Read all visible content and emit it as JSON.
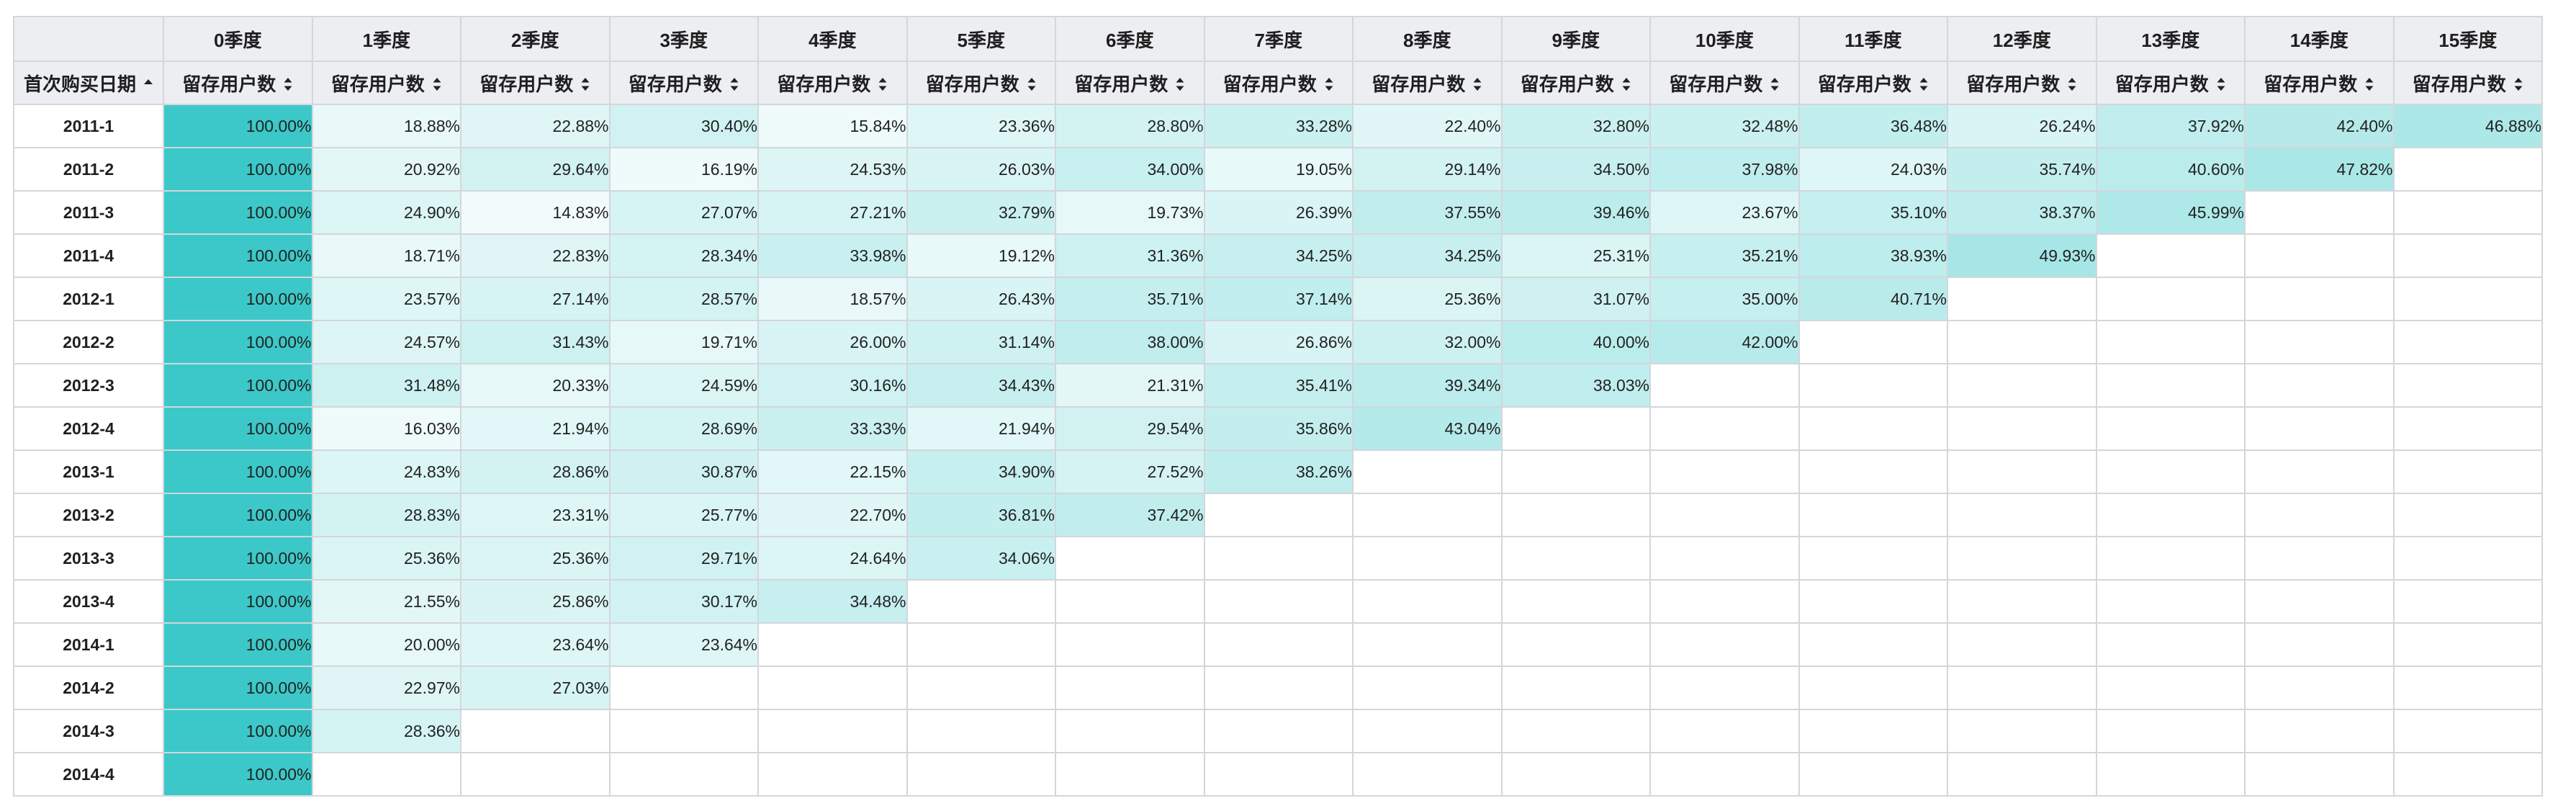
{
  "table": {
    "corner_label": "",
    "row_header_label": "首次购买日期",
    "subheader_label": "留存用户数",
    "quarters": [
      "0季度",
      "1季度",
      "2季度",
      "3季度",
      "4季度",
      "5季度",
      "6季度",
      "7季度",
      "8季度",
      "9季度",
      "10季度",
      "11季度",
      "12季度",
      "13季度",
      "14季度",
      "15季度"
    ],
    "rows": [
      {
        "label": "2011-1",
        "values": [
          "100.00%",
          "18.88%",
          "22.88%",
          "30.40%",
          "15.84%",
          "23.36%",
          "28.80%",
          "33.28%",
          "22.40%",
          "32.80%",
          "32.48%",
          "36.48%",
          "26.24%",
          "37.92%",
          "42.40%",
          "46.88%"
        ]
      },
      {
        "label": "2011-2",
        "values": [
          "100.00%",
          "20.92%",
          "29.64%",
          "16.19%",
          "24.53%",
          "26.03%",
          "34.00%",
          "19.05%",
          "29.14%",
          "34.50%",
          "37.98%",
          "24.03%",
          "35.74%",
          "40.60%",
          "47.82%"
        ]
      },
      {
        "label": "2011-3",
        "values": [
          "100.00%",
          "24.90%",
          "14.83%",
          "27.07%",
          "27.21%",
          "32.79%",
          "19.73%",
          "26.39%",
          "37.55%",
          "39.46%",
          "23.67%",
          "35.10%",
          "38.37%",
          "45.99%"
        ]
      },
      {
        "label": "2011-4",
        "values": [
          "100.00%",
          "18.71%",
          "22.83%",
          "28.34%",
          "33.98%",
          "19.12%",
          "31.36%",
          "34.25%",
          "34.25%",
          "25.31%",
          "35.21%",
          "38.93%",
          "49.93%"
        ]
      },
      {
        "label": "2012-1",
        "values": [
          "100.00%",
          "23.57%",
          "27.14%",
          "28.57%",
          "18.57%",
          "26.43%",
          "35.71%",
          "37.14%",
          "25.36%",
          "31.07%",
          "35.00%",
          "40.71%"
        ]
      },
      {
        "label": "2012-2",
        "values": [
          "100.00%",
          "24.57%",
          "31.43%",
          "19.71%",
          "26.00%",
          "31.14%",
          "38.00%",
          "26.86%",
          "32.00%",
          "40.00%",
          "42.00%"
        ]
      },
      {
        "label": "2012-3",
        "values": [
          "100.00%",
          "31.48%",
          "20.33%",
          "24.59%",
          "30.16%",
          "34.43%",
          "21.31%",
          "35.41%",
          "39.34%",
          "38.03%"
        ]
      },
      {
        "label": "2012-4",
        "values": [
          "100.00%",
          "16.03%",
          "21.94%",
          "28.69%",
          "33.33%",
          "21.94%",
          "29.54%",
          "35.86%",
          "43.04%"
        ]
      },
      {
        "label": "2013-1",
        "values": [
          "100.00%",
          "24.83%",
          "28.86%",
          "30.87%",
          "22.15%",
          "34.90%",
          "27.52%",
          "38.26%"
        ]
      },
      {
        "label": "2013-2",
        "values": [
          "100.00%",
          "28.83%",
          "23.31%",
          "25.77%",
          "22.70%",
          "36.81%",
          "37.42%"
        ]
      },
      {
        "label": "2013-3",
        "values": [
          "100.00%",
          "25.36%",
          "25.36%",
          "29.71%",
          "24.64%",
          "34.06%"
        ]
      },
      {
        "label": "2013-4",
        "values": [
          "100.00%",
          "21.55%",
          "25.86%",
          "30.17%",
          "34.48%"
        ]
      },
      {
        "label": "2014-1",
        "values": [
          "100.00%",
          "20.00%",
          "23.64%",
          "23.64%"
        ]
      },
      {
        "label": "2014-2",
        "values": [
          "100.00%",
          "22.97%",
          "27.03%"
        ]
      },
      {
        "label": "2014-3",
        "values": [
          "100.00%",
          "28.36%"
        ]
      },
      {
        "label": "2014-4",
        "values": [
          "100.00%"
        ]
      }
    ]
  },
  "colors": {
    "heat_low": "#ffffff",
    "heat_high": "#3cc8c8",
    "header_bg": "#eceef2",
    "border": "#d3d6db"
  },
  "icons": {
    "row_header_sort": "sort-ascending-icon",
    "column_sort": "sort-both-icon"
  }
}
